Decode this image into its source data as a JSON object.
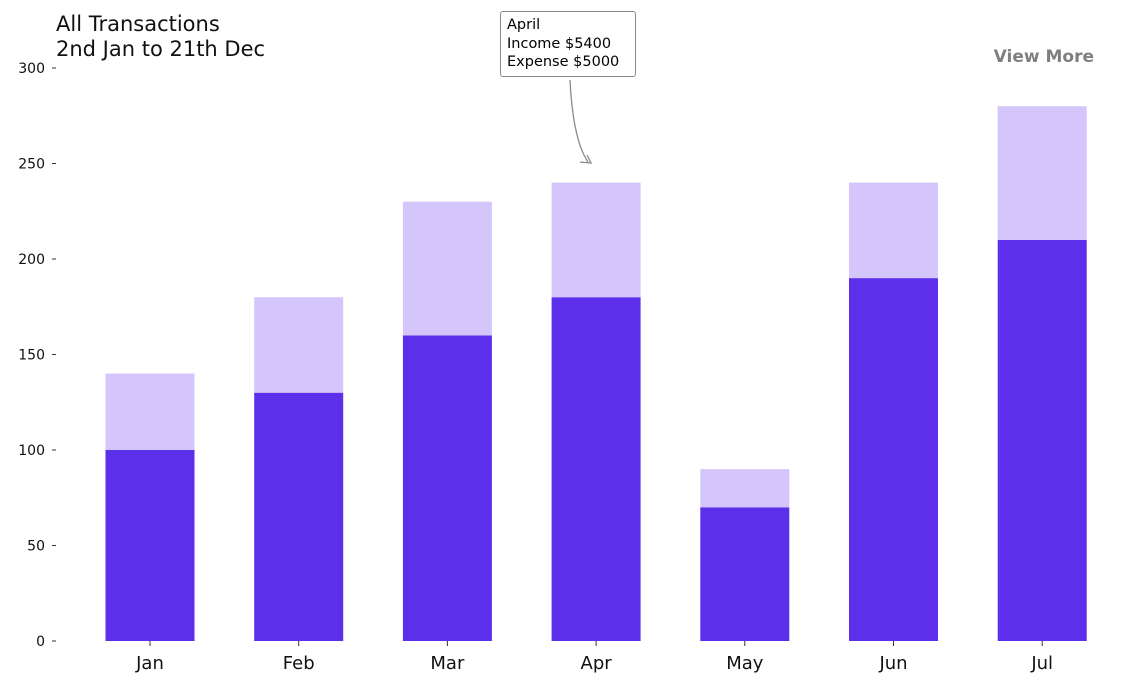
{
  "title": {
    "line1": "All Transactions",
    "line2": "2nd Jan to 21th Dec"
  },
  "view_more_label": "View More",
  "tooltip": {
    "month": "April",
    "income_line": "Income  $5400",
    "expense_line": "Expense $5000"
  },
  "colors": {
    "lower": "#5c2fea",
    "upper": "#d4c6fb"
  },
  "chart_data": {
    "type": "bar",
    "stacked": true,
    "categories": [
      "Jan",
      "Feb",
      "Mar",
      "Apr",
      "May",
      "Jun",
      "Jul"
    ],
    "series": [
      {
        "values": [
          100,
          130,
          160,
          180,
          70,
          190,
          210
        ]
      },
      {
        "values": [
          40,
          50,
          70,
          60,
          20,
          50,
          70
        ]
      }
    ],
    "ylim": [
      0,
      300
    ],
    "yticks": [
      0,
      50,
      100,
      150,
      200,
      250,
      300
    ],
    "grid": false
  }
}
